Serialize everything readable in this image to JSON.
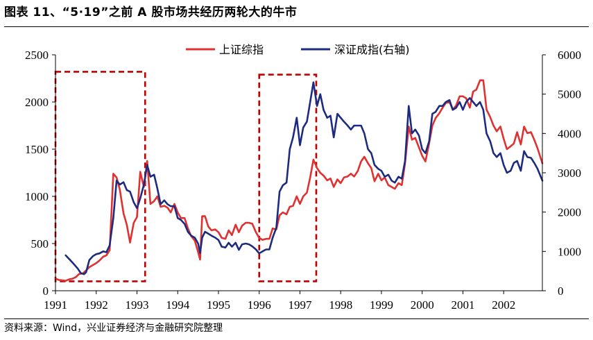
{
  "title": "图表 11、“5·19”之前 A 股市场共经历两轮大的牛市",
  "source": "资料来源：Wind，兴业证券经济与金融研究院整理",
  "chart_data": {
    "type": "line",
    "grid": false,
    "legend_position": "top-center",
    "xlabel": "",
    "ylabel": "",
    "x_range": [
      1991.0,
      2002.95
    ],
    "x_ticks": [
      1991,
      1992,
      1993,
      1994,
      1995,
      1996,
      1997,
      1998,
      1999,
      2000,
      2001,
      2002
    ],
    "x_tick_labels": [
      "1991",
      "1992",
      "1993",
      "1994",
      "1995",
      "1996",
      "1997",
      "1998",
      "1999",
      "2000",
      "2001",
      "2002"
    ],
    "ylim_left": [
      0,
      2500
    ],
    "y_left_ticks": [
      0,
      500,
      1000,
      1500,
      2000,
      2500
    ],
    "y_left_tick_labels": [
      "0",
      "500",
      "1000",
      "1500",
      "2000",
      "2500"
    ],
    "ylim_right": [
      0,
      6000
    ],
    "y_right_ticks": [
      0,
      1000,
      2000,
      3000,
      4000,
      5000,
      6000
    ],
    "y_right_tick_labels": [
      "0",
      "1000",
      "2000",
      "3000",
      "4000",
      "5000",
      "6000"
    ],
    "series": [
      {
        "name": "上证综指",
        "color": "#e03030",
        "axis": "left",
        "points": [
          [
            1991.0,
            128
          ],
          [
            1991.08,
            115
          ],
          [
            1991.17,
            110
          ],
          [
            1991.25,
            105
          ],
          [
            1991.33,
            120
          ],
          [
            1991.42,
            128
          ],
          [
            1991.5,
            145
          ],
          [
            1991.58,
            178
          ],
          [
            1991.67,
            183
          ],
          [
            1991.75,
            215
          ],
          [
            1991.83,
            250
          ],
          [
            1991.92,
            272
          ],
          [
            1992.0,
            293
          ],
          [
            1992.08,
            320
          ],
          [
            1992.17,
            360
          ],
          [
            1992.25,
            375
          ],
          [
            1992.33,
            430
          ],
          [
            1992.42,
            1240
          ],
          [
            1992.5,
            1200
          ],
          [
            1992.58,
            1070
          ],
          [
            1992.67,
            820
          ],
          [
            1992.75,
            700
          ],
          [
            1992.83,
            510
          ],
          [
            1992.92,
            720
          ],
          [
            1993.0,
            780
          ],
          [
            1993.08,
            1260
          ],
          [
            1993.17,
            1100
          ],
          [
            1993.25,
            1375
          ],
          [
            1993.33,
            920
          ],
          [
            1993.42,
            950
          ],
          [
            1993.5,
            1000
          ],
          [
            1993.58,
            890
          ],
          [
            1993.67,
            900
          ],
          [
            1993.75,
            880
          ],
          [
            1993.83,
            830
          ],
          [
            1993.92,
            920
          ],
          [
            1994.0,
            830
          ],
          [
            1994.08,
            770
          ],
          [
            1994.17,
            770
          ],
          [
            1994.25,
            660
          ],
          [
            1994.33,
            580
          ],
          [
            1994.42,
            530
          ],
          [
            1994.5,
            410
          ],
          [
            1994.55,
            330
          ],
          [
            1994.6,
            790
          ],
          [
            1994.67,
            790
          ],
          [
            1994.75,
            680
          ],
          [
            1994.83,
            640
          ],
          [
            1994.92,
            650
          ],
          [
            1995.0,
            620
          ],
          [
            1995.08,
            560
          ],
          [
            1995.17,
            550
          ],
          [
            1995.25,
            640
          ],
          [
            1995.33,
            590
          ],
          [
            1995.42,
            700
          ],
          [
            1995.5,
            620
          ],
          [
            1995.58,
            690
          ],
          [
            1995.67,
            720
          ],
          [
            1995.75,
            720
          ],
          [
            1995.83,
            710
          ],
          [
            1995.92,
            620
          ],
          [
            1996.0,
            560
          ],
          [
            1996.08,
            540
          ],
          [
            1996.17,
            550
          ],
          [
            1996.25,
            550
          ],
          [
            1996.33,
            660
          ],
          [
            1996.42,
            650
          ],
          [
            1996.5,
            800
          ],
          [
            1996.58,
            830
          ],
          [
            1996.67,
            810
          ],
          [
            1996.75,
            890
          ],
          [
            1996.83,
            900
          ],
          [
            1996.92,
            1000
          ],
          [
            1997.0,
            920
          ],
          [
            1997.08,
            1000
          ],
          [
            1997.17,
            1040
          ],
          [
            1997.25,
            1200
          ],
          [
            1997.33,
            1390
          ],
          [
            1997.42,
            1300
          ],
          [
            1997.5,
            1250
          ],
          [
            1997.58,
            1220
          ],
          [
            1997.67,
            1170
          ],
          [
            1997.75,
            1190
          ],
          [
            1997.83,
            1100
          ],
          [
            1997.92,
            1180
          ],
          [
            1998.0,
            1140
          ],
          [
            1998.08,
            1200
          ],
          [
            1998.17,
            1210
          ],
          [
            1998.25,
            1240
          ],
          [
            1998.33,
            1210
          ],
          [
            1998.42,
            1270
          ],
          [
            1998.5,
            1370
          ],
          [
            1998.58,
            1420
          ],
          [
            1998.67,
            1350
          ],
          [
            1998.75,
            1300
          ],
          [
            1998.83,
            1160
          ],
          [
            1998.92,
            1240
          ],
          [
            1999.0,
            1170
          ],
          [
            1999.08,
            1200
          ],
          [
            1999.17,
            1120
          ],
          [
            1999.25,
            1100
          ],
          [
            1999.33,
            1080
          ],
          [
            1999.42,
            1140
          ],
          [
            1999.5,
            1120
          ],
          [
            1999.58,
            1350
          ],
          [
            1999.67,
            1740
          ],
          [
            1999.75,
            1600
          ],
          [
            1999.83,
            1620
          ],
          [
            1999.92,
            1520
          ],
          [
            2000.0,
            1430
          ],
          [
            2000.08,
            1370
          ],
          [
            2000.17,
            1560
          ],
          [
            2000.25,
            1750
          ],
          [
            2000.33,
            1830
          ],
          [
            2000.42,
            1880
          ],
          [
            2000.5,
            1940
          ],
          [
            2000.58,
            1990
          ],
          [
            2000.67,
            2000
          ],
          [
            2000.75,
            1920
          ],
          [
            2000.83,
            1960
          ],
          [
            2000.92,
            2060
          ],
          [
            2001.0,
            2060
          ],
          [
            2001.08,
            2040
          ],
          [
            2001.17,
            1940
          ],
          [
            2001.25,
            2110
          ],
          [
            2001.33,
            2130
          ],
          [
            2001.42,
            2230
          ],
          [
            2001.5,
            2230
          ],
          [
            2001.58,
            1920
          ],
          [
            2001.67,
            1840
          ],
          [
            2001.75,
            1750
          ],
          [
            2001.83,
            1690
          ],
          [
            2001.92,
            1740
          ],
          [
            2002.0,
            1610
          ],
          [
            2002.08,
            1500
          ],
          [
            2002.17,
            1530
          ],
          [
            2002.25,
            1560
          ],
          [
            2002.33,
            1680
          ],
          [
            2002.42,
            1550
          ],
          [
            2002.5,
            1740
          ],
          [
            2002.58,
            1670
          ],
          [
            2002.67,
            1680
          ],
          [
            2002.75,
            1600
          ],
          [
            2002.83,
            1510
          ],
          [
            2002.95,
            1350
          ]
        ]
      },
      {
        "name": "深证成指(右轴)",
        "color": "#1c2b80",
        "axis": "right",
        "points": [
          [
            1991.25,
            900
          ],
          [
            1991.35,
            790
          ],
          [
            1991.45,
            680
          ],
          [
            1991.55,
            560
          ],
          [
            1991.62,
            450
          ],
          [
            1991.7,
            420
          ],
          [
            1991.75,
            470
          ],
          [
            1991.83,
            780
          ],
          [
            1991.92,
            880
          ],
          [
            1992.0,
            930
          ],
          [
            1992.08,
            950
          ],
          [
            1992.17,
            1000
          ],
          [
            1992.25,
            980
          ],
          [
            1992.33,
            1150
          ],
          [
            1992.42,
            1850
          ],
          [
            1992.5,
            2800
          ],
          [
            1992.58,
            2700
          ],
          [
            1992.67,
            2760
          ],
          [
            1992.75,
            2560
          ],
          [
            1992.83,
            2520
          ],
          [
            1992.92,
            2250
          ],
          [
            1993.0,
            2100
          ],
          [
            1993.08,
            2350
          ],
          [
            1993.17,
            2700
          ],
          [
            1993.25,
            3200
          ],
          [
            1993.33,
            2900
          ],
          [
            1993.42,
            2950
          ],
          [
            1993.5,
            2600
          ],
          [
            1993.58,
            2200
          ],
          [
            1993.67,
            2300
          ],
          [
            1993.75,
            2200
          ],
          [
            1993.83,
            2150
          ],
          [
            1993.92,
            2150
          ],
          [
            1994.0,
            1850
          ],
          [
            1994.08,
            1800
          ],
          [
            1994.17,
            1700
          ],
          [
            1994.25,
            1500
          ],
          [
            1994.33,
            1400
          ],
          [
            1994.42,
            1350
          ],
          [
            1994.5,
            1200
          ],
          [
            1994.55,
            960
          ],
          [
            1994.6,
            1350
          ],
          [
            1994.67,
            1500
          ],
          [
            1994.75,
            1450
          ],
          [
            1994.83,
            1400
          ],
          [
            1994.92,
            1350
          ],
          [
            1995.0,
            1290
          ],
          [
            1995.08,
            1120
          ],
          [
            1995.17,
            1100
          ],
          [
            1995.25,
            1220
          ],
          [
            1995.33,
            1120
          ],
          [
            1995.42,
            1220
          ],
          [
            1995.5,
            1040
          ],
          [
            1995.58,
            1180
          ],
          [
            1995.67,
            1200
          ],
          [
            1995.75,
            1180
          ],
          [
            1995.83,
            1130
          ],
          [
            1995.92,
            1050
          ],
          [
            1996.0,
            950
          ],
          [
            1996.08,
            1000
          ],
          [
            1996.17,
            1050
          ],
          [
            1996.25,
            1050
          ],
          [
            1996.33,
            1350
          ],
          [
            1996.42,
            1600
          ],
          [
            1996.5,
            2520
          ],
          [
            1996.58,
            2680
          ],
          [
            1996.67,
            2750
          ],
          [
            1996.75,
            3600
          ],
          [
            1996.83,
            3900
          ],
          [
            1996.92,
            4400
          ],
          [
            1997.0,
            3700
          ],
          [
            1997.08,
            4150
          ],
          [
            1997.17,
            4300
          ],
          [
            1997.25,
            4800
          ],
          [
            1997.33,
            5300
          ],
          [
            1997.42,
            4700
          ],
          [
            1997.5,
            5000
          ],
          [
            1997.58,
            4600
          ],
          [
            1997.67,
            4400
          ],
          [
            1997.75,
            4450
          ],
          [
            1997.83,
            3900
          ],
          [
            1997.92,
            4500
          ],
          [
            1998.0,
            4400
          ],
          [
            1998.08,
            4300
          ],
          [
            1998.17,
            4200
          ],
          [
            1998.25,
            4100
          ],
          [
            1998.33,
            4200
          ],
          [
            1998.42,
            4200
          ],
          [
            1998.5,
            4200
          ],
          [
            1998.58,
            4000
          ],
          [
            1998.67,
            3600
          ],
          [
            1998.75,
            3500
          ],
          [
            1998.83,
            3200
          ],
          [
            1998.92,
            3100
          ],
          [
            1999.0,
            3050
          ],
          [
            1999.08,
            2900
          ],
          [
            1999.17,
            2950
          ],
          [
            1999.25,
            2800
          ],
          [
            1999.33,
            2750
          ],
          [
            1999.42,
            2900
          ],
          [
            1999.5,
            2850
          ],
          [
            1999.58,
            3300
          ],
          [
            1999.67,
            4700
          ],
          [
            1999.75,
            4000
          ],
          [
            1999.83,
            4100
          ],
          [
            1999.92,
            3950
          ],
          [
            2000.0,
            3600
          ],
          [
            2000.08,
            3500
          ],
          [
            2000.17,
            3800
          ],
          [
            2000.25,
            4500
          ],
          [
            2000.33,
            4550
          ],
          [
            2000.42,
            4700
          ],
          [
            2000.5,
            4700
          ],
          [
            2000.58,
            4800
          ],
          [
            2000.67,
            4850
          ],
          [
            2000.75,
            4600
          ],
          [
            2000.83,
            4650
          ],
          [
            2000.92,
            4800
          ],
          [
            2001.0,
            4600
          ],
          [
            2001.08,
            4800
          ],
          [
            2001.17,
            4900
          ],
          [
            2001.25,
            4800
          ],
          [
            2001.33,
            4700
          ],
          [
            2001.42,
            4800
          ],
          [
            2001.5,
            4600
          ],
          [
            2001.58,
            4000
          ],
          [
            2001.67,
            3800
          ],
          [
            2001.75,
            3500
          ],
          [
            2001.83,
            3400
          ],
          [
            2001.92,
            3500
          ],
          [
            2002.0,
            3200
          ],
          [
            2002.08,
            3000
          ],
          [
            2002.17,
            3050
          ],
          [
            2002.25,
            3250
          ],
          [
            2002.33,
            3300
          ],
          [
            2002.42,
            3050
          ],
          [
            2002.5,
            3550
          ],
          [
            2002.58,
            3400
          ],
          [
            2002.67,
            3380
          ],
          [
            2002.75,
            3250
          ],
          [
            2002.83,
            3100
          ],
          [
            2002.95,
            2800
          ]
        ]
      }
    ],
    "highlight_boxes": [
      {
        "x_start": 1991.0,
        "x_end": 1993.2,
        "y_bottom": 100,
        "y_top": 2320,
        "axis": "left",
        "color": "#c00000",
        "style": "dashed"
      },
      {
        "x_start": 1996.0,
        "x_end": 1997.4,
        "y_bottom": 100,
        "y_top": 2290,
        "axis": "left",
        "color": "#c00000",
        "style": "dashed"
      }
    ]
  }
}
